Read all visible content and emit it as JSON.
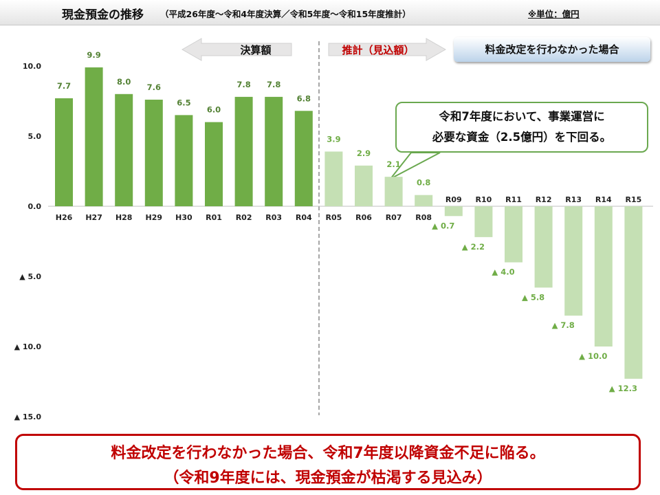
{
  "title": {
    "main": "現金預金の推移",
    "sub": "（平成26年度～令和4年度決算／令和5年度～令和15年度推計）",
    "unit": "※単位：億円"
  },
  "labels": {
    "actual": "決算額",
    "forecast": "推計（見込額）",
    "scenario": "料金改定を行わなかった場合"
  },
  "callout": {
    "line1": "令和7年度において、事業運営に",
    "line2": "必要な資金（2.5億円）を下回る。"
  },
  "conclusion": {
    "line1": "料金改定を行わなかった場合、令和7年度以降資金不足に陥る。",
    "line2": "（令和9年度には、現金預金が枯渇する見込み）"
  },
  "colors": {
    "actual_bar": "#70ad47",
    "forecast_bar": "#c5e0b4",
    "actual_label": "#548235",
    "forecast_label": "#70ad47",
    "divider": "#a6a6a6",
    "alert": "#c00000"
  },
  "chart_data": {
    "type": "bar",
    "categories": [
      "H26",
      "H27",
      "H28",
      "H29",
      "H30",
      "R01",
      "R02",
      "R03",
      "R04",
      "R05",
      "R06",
      "R07",
      "R08",
      "R09",
      "R10",
      "R11",
      "R12",
      "R13",
      "R14",
      "R15"
    ],
    "values": [
      7.7,
      9.9,
      8.0,
      7.6,
      6.5,
      6.0,
      7.8,
      7.8,
      6.8,
      3.9,
      2.9,
      2.1,
      0.8,
      -0.7,
      -2.2,
      -4.0,
      -5.8,
      -7.8,
      -10.0,
      -12.3
    ],
    "value_labels": [
      "7.7",
      "9.9",
      "8.0",
      "7.6",
      "6.5",
      "6.0",
      "7.8",
      "7.8",
      "6.8",
      "3.9",
      "2.9",
      "2.1",
      "0.8",
      "▲ 0.7",
      "▲ 2.2",
      "▲ 4.0",
      "▲ 5.8",
      "▲ 7.8",
      "▲ 10.0",
      "▲ 12.3"
    ],
    "actual_count": 9,
    "ylim": [
      -15,
      10
    ],
    "y_ticks": [
      10,
      5,
      0,
      -5,
      -10,
      -15
    ],
    "y_tick_labels": [
      "10.0",
      "5.0",
      "0.0",
      "▲ 5.0",
      "▲ 10.0",
      "▲ 15.0"
    ],
    "grid": false,
    "xlabel": "",
    "ylabel": ""
  }
}
